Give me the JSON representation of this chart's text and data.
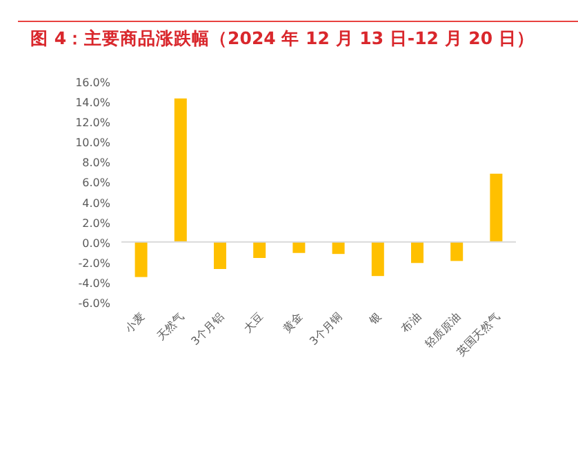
{
  "chart_data": {
    "type": "bar",
    "title": "图 4：主要商品涨跌幅（2024 年 12 月 13 日-12 月 20 日）",
    "categories": [
      "小麦",
      "天然气",
      "3个月铝",
      "大豆",
      "黄金",
      "3个月铜",
      "银",
      "布油",
      "轻质原油",
      "英国天然气"
    ],
    "values": [
      -3.5,
      14.3,
      -2.7,
      -1.6,
      -1.1,
      -1.2,
      -3.4,
      -2.1,
      -1.9,
      6.8
    ],
    "color": "#ffc000",
    "ylim": [
      -6,
      16
    ],
    "yticks": [
      {
        "value": -6,
        "label": "-6.0%"
      },
      {
        "value": -4,
        "label": "-4.0%"
      },
      {
        "value": -2,
        "label": "-2.0%"
      },
      {
        "value": 0,
        "label": "0.0%"
      },
      {
        "value": 2,
        "label": "2.0%"
      },
      {
        "value": 4,
        "label": "4.0%"
      },
      {
        "value": 6,
        "label": "6.0%"
      },
      {
        "value": 8,
        "label": "8.0%"
      },
      {
        "value": 10,
        "label": "10.0%"
      },
      {
        "value": 12,
        "label": "12.0%"
      },
      {
        "value": 14,
        "label": "14.0%"
      },
      {
        "value": 16,
        "label": "16.0%"
      }
    ],
    "orientation": "vertical"
  }
}
